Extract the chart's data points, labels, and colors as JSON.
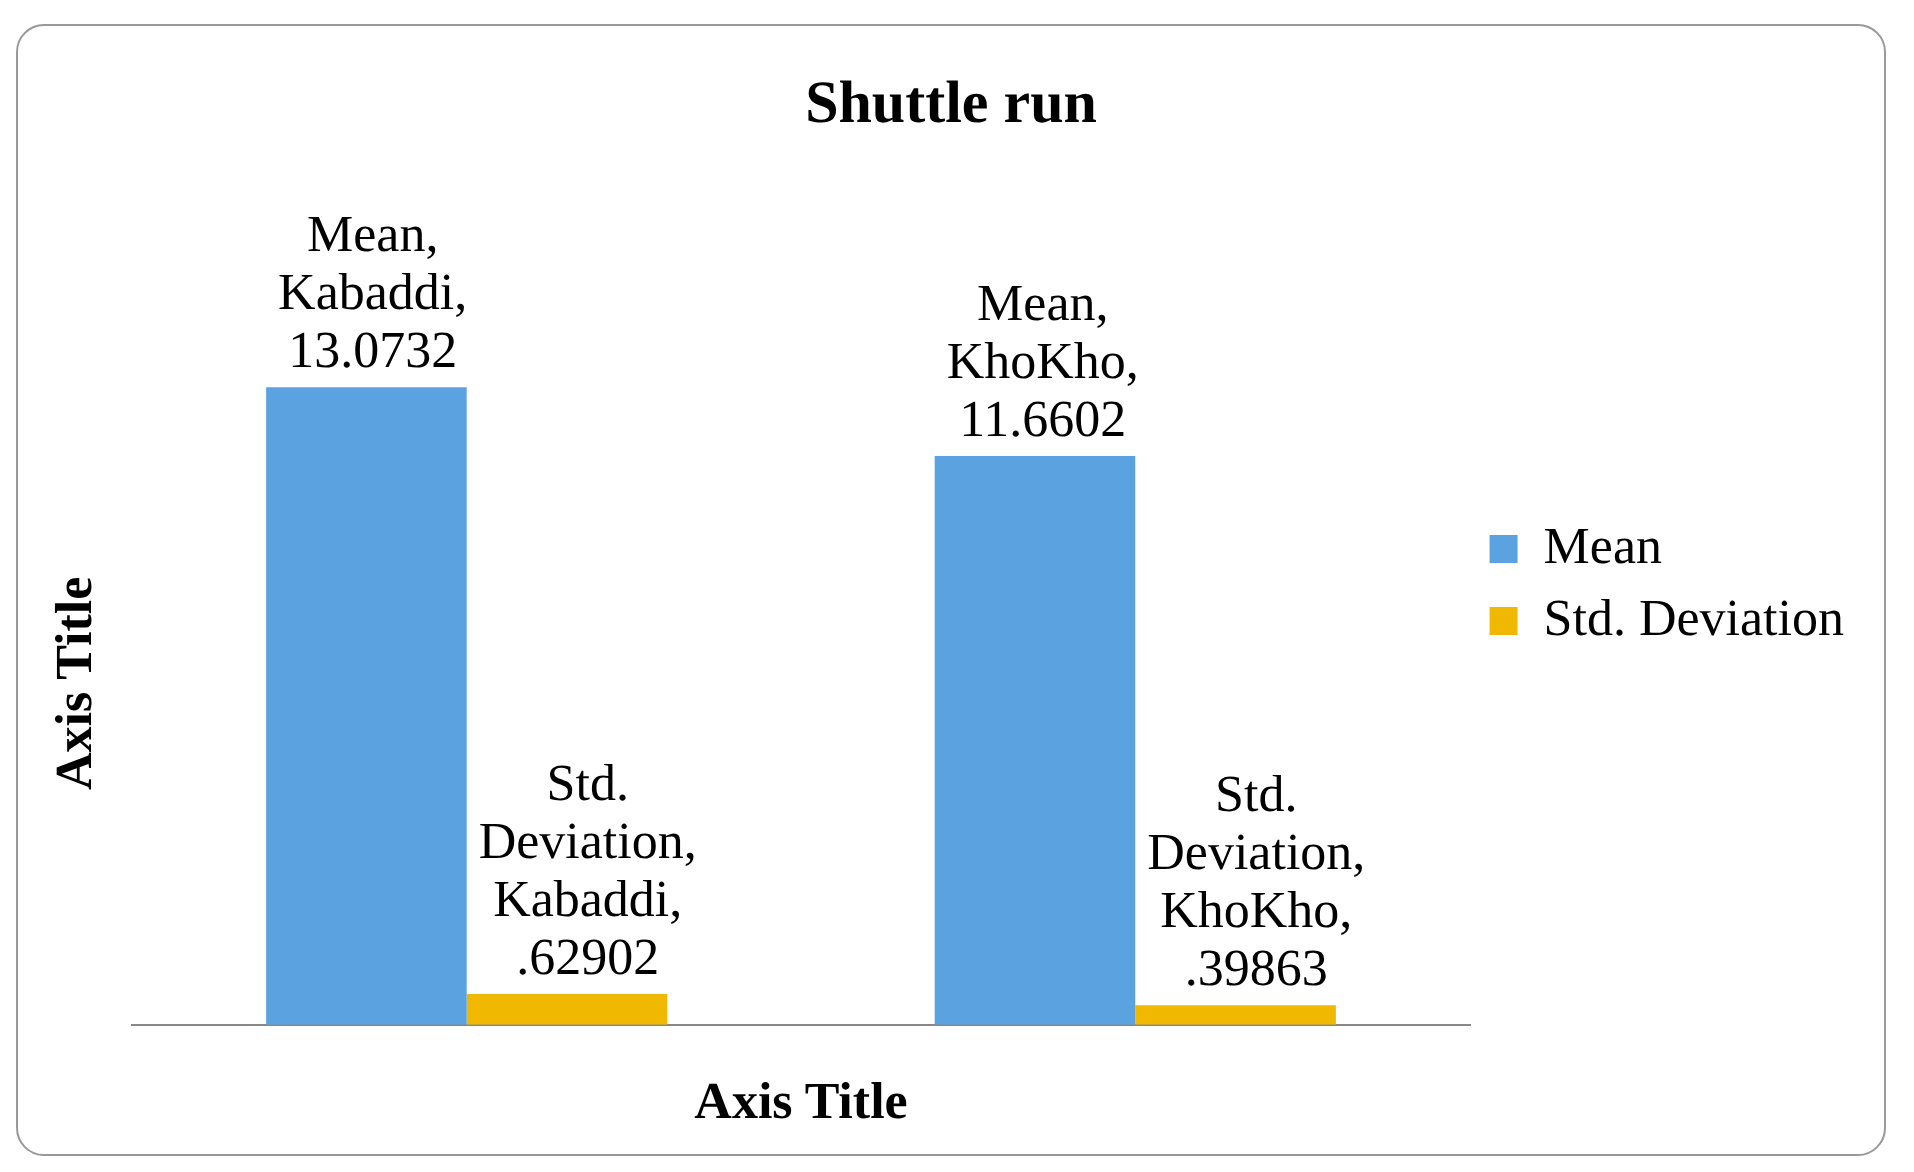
{
  "chart_data": {
    "type": "bar",
    "title": "Shuttle run",
    "xlabel": "Axis Title",
    "ylabel": "Axis Title",
    "categories": [
      null,
      null
    ],
    "series": [
      {
        "name": "Mean",
        "color": "#5ba3e0",
        "values": [
          13.0732,
          11.6602
        ],
        "value_labels": [
          "Mean, Kabaddi, 13.0732",
          "Mean, KhoKho, 11.6602"
        ]
      },
      {
        "name": "Std. Deviation",
        "color": "#f0b800",
        "values": [
          0.62902,
          0.39863
        ],
        "value_labels": [
          "Std. Deviation, Kabaddi, .62902",
          "Std. Deviation, KhoKho, .39863"
        ]
      }
    ],
    "legend": "right",
    "grid": false
  }
}
